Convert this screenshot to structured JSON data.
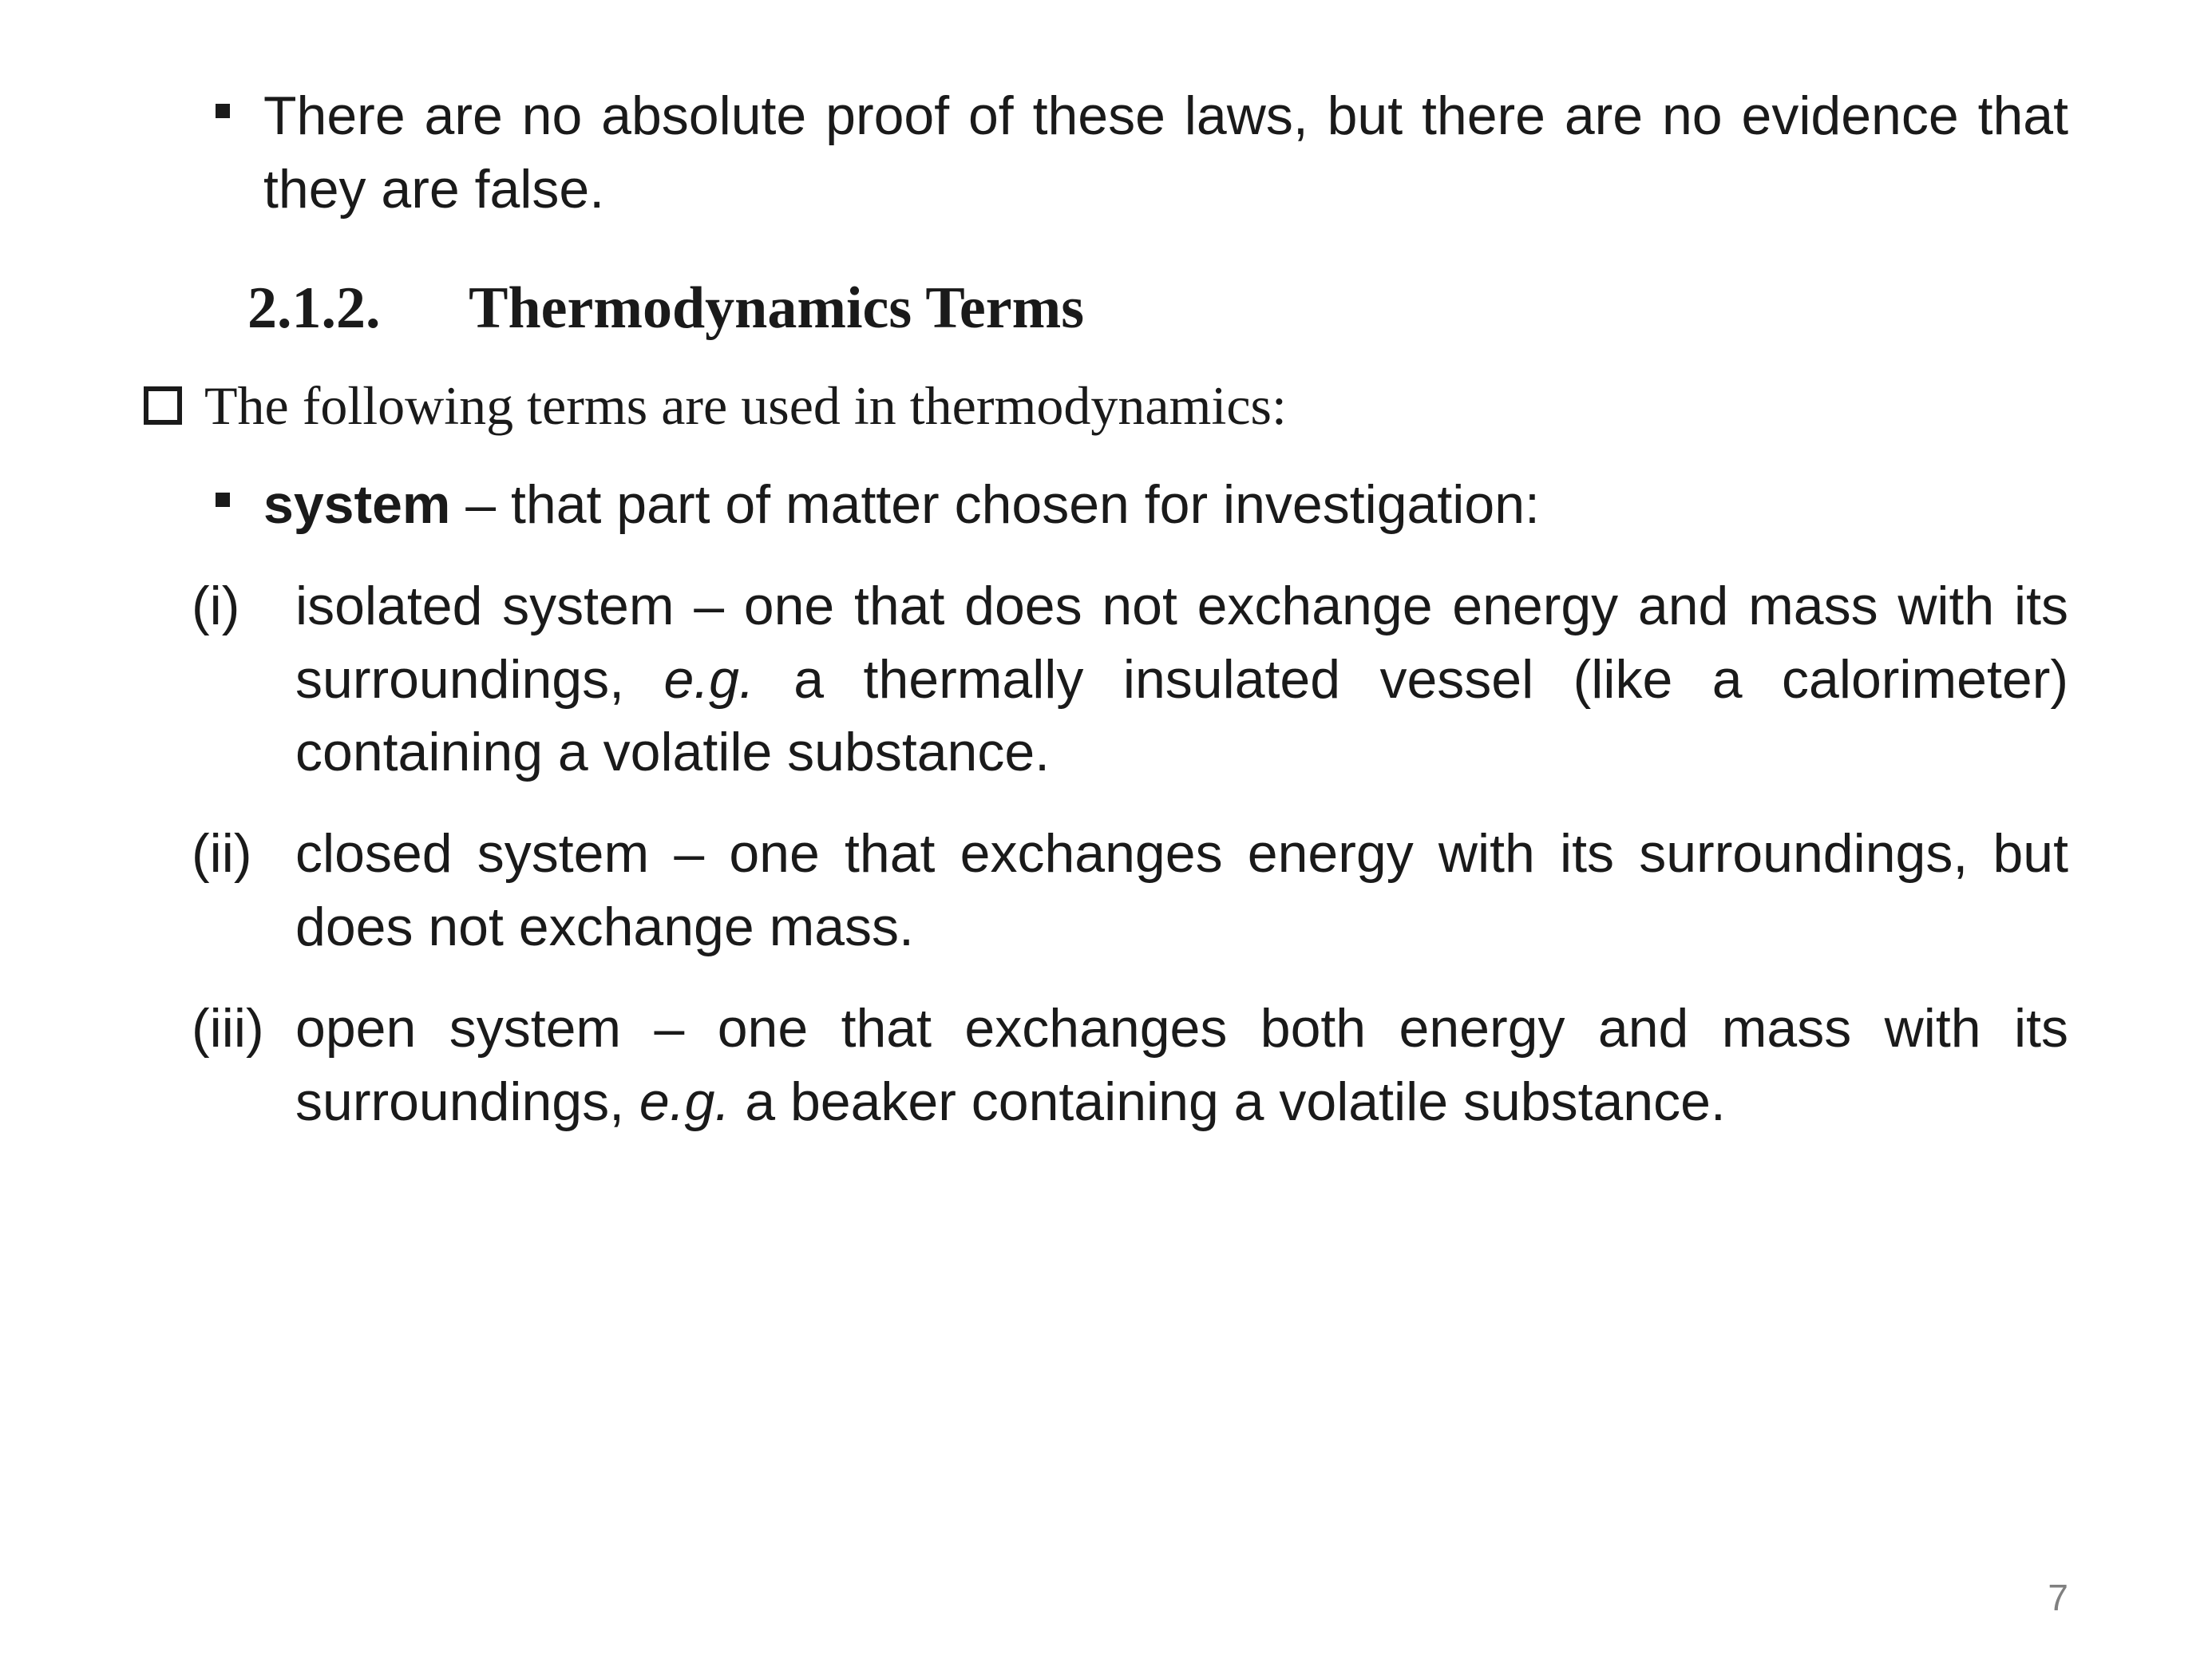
{
  "intro_bullet": "There are no absolute proof of these laws, but there are no evidence that they are false.",
  "heading": {
    "number": "2.1.2.",
    "title": "Thermodynamics Terms"
  },
  "lead_in": "The following terms are used in thermodynamics:",
  "system_term": {
    "label": "system",
    "definition": " – that part of matter chosen for investigation:"
  },
  "items": [
    {
      "label": "(i)",
      "pre": "isolated system – one that does not exchange energy and mass with its surroundings, ",
      "italic": "e.g.",
      "post": " a thermally insulated vessel (like a calorimeter) containing a volatile substance."
    },
    {
      "label": "(ii)",
      "pre": "closed system – one that exchanges energy with its surroundings, but does not exchange mass.",
      "italic": "",
      "post": ""
    },
    {
      "label": "(iii)",
      "pre": "open system – one that exchanges both energy and mass with its surroundings, ",
      "italic": "e.g.",
      "post": " a beaker containing a volatile substance."
    }
  ],
  "page_number": "7",
  "colors": {
    "text": "#1a1a1a",
    "page_number": "#808080",
    "background": "#ffffff"
  },
  "fonts": {
    "heading_family": "Georgia, serif",
    "body_family": "Arial, sans-serif",
    "heading_size_pt": 56,
    "body_size_pt": 51
  }
}
